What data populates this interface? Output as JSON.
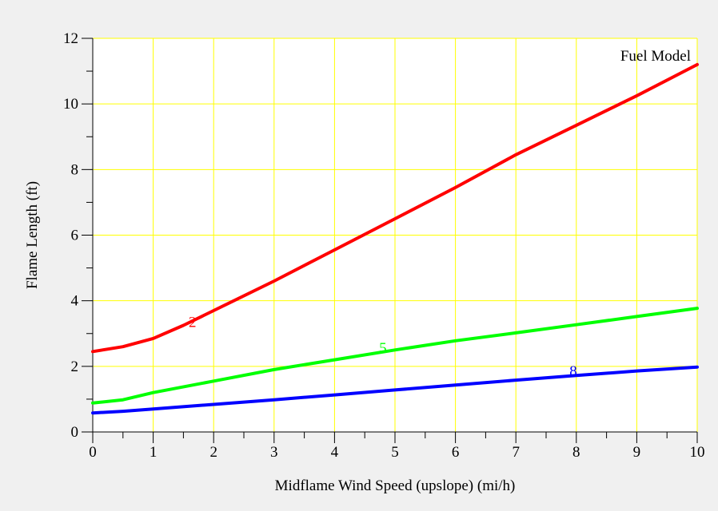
{
  "chart_data": {
    "type": "line",
    "title": "",
    "xlabel": "Midflame Wind Speed (upslope) (mi/h)",
    "ylabel": "Flame Length (ft)",
    "xlim": [
      0,
      10
    ],
    "ylim": [
      0,
      12
    ],
    "x_ticks": [
      0,
      1,
      2,
      3,
      4,
      5,
      6,
      7,
      8,
      9,
      10
    ],
    "y_ticks": [
      0,
      2,
      4,
      6,
      8,
      10,
      12
    ],
    "grid": true,
    "legend_title": "Fuel Model",
    "legend_placement": "top-right",
    "series": [
      {
        "name": "2",
        "color": "#ff0000",
        "label_at": [
          1.65,
          3.4
        ],
        "x": [
          0,
          0.5,
          1,
          1.5,
          2,
          3,
          4,
          5,
          6,
          7,
          8,
          9,
          10
        ],
        "y": [
          2.45,
          2.6,
          2.85,
          3.25,
          3.7,
          4.6,
          5.55,
          6.5,
          7.45,
          8.45,
          9.35,
          10.25,
          11.2
        ]
      },
      {
        "name": "5",
        "color": "#00ff00",
        "label_at": [
          4.8,
          2.6
        ],
        "x": [
          0,
          0.5,
          1,
          2,
          3,
          4,
          5,
          6,
          7,
          8,
          9,
          10
        ],
        "y": [
          0.88,
          0.98,
          1.2,
          1.55,
          1.9,
          2.2,
          2.5,
          2.78,
          3.02,
          3.27,
          3.52,
          3.77
        ]
      },
      {
        "name": "8",
        "color": "#0000ff",
        "label_at": [
          7.95,
          1.9
        ],
        "x": [
          0,
          0.5,
          1,
          2,
          3,
          4,
          5,
          6,
          7,
          8,
          9,
          10
        ],
        "y": [
          0.58,
          0.63,
          0.7,
          0.84,
          0.98,
          1.13,
          1.28,
          1.43,
          1.58,
          1.72,
          1.86,
          1.98
        ]
      }
    ]
  },
  "colors": {
    "background": "#f0f0f0",
    "plot_background": "#ffffff",
    "grid": "#ffff00",
    "axis": "#000000"
  }
}
